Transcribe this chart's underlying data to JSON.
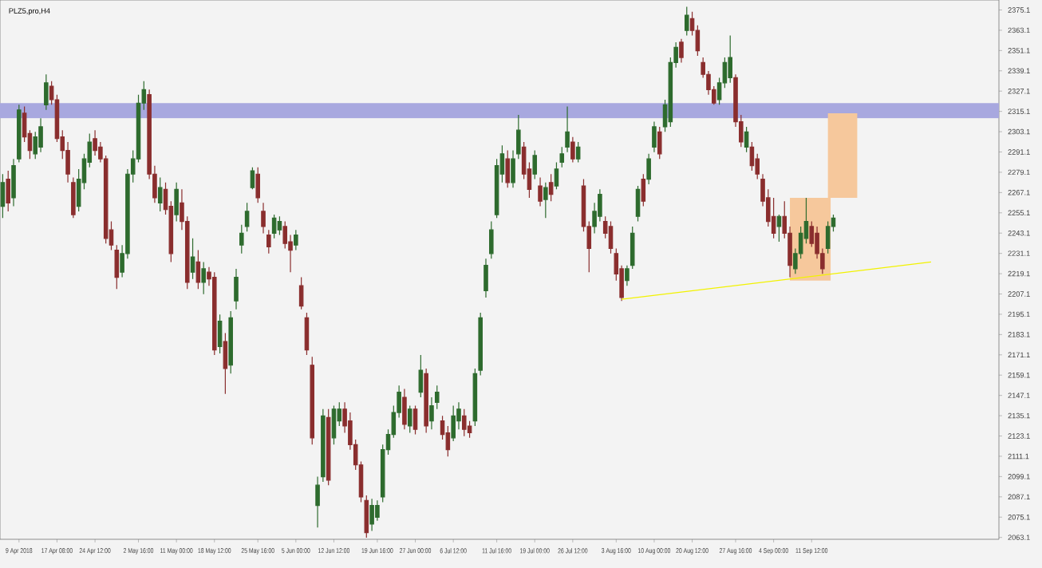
{
  "chart_data": {
    "type": "candlestick",
    "title": "PLZ5,pro,H4",
    "categories": [
      null,
      null,
      null,
      "9 Apr 2018",
      null,
      null,
      null,
      null,
      null,
      null,
      "17 Apr 08:00",
      null,
      null,
      null,
      null,
      null,
      null,
      "24 Apr 12:00",
      null,
      null,
      null,
      null,
      null,
      null,
      null,
      "2 May 16:00",
      null,
      null,
      null,
      null,
      null,
      null,
      "11 May 00:00",
      null,
      null,
      null,
      null,
      null,
      null,
      "18 May 12:00",
      null,
      null,
      null,
      null,
      null,
      null,
      null,
      "25 May 16:00",
      null,
      null,
      null,
      null,
      null,
      null,
      "5 Jun 00:00",
      null,
      null,
      null,
      null,
      null,
      null,
      "12 Jun 12:00",
      null,
      null,
      null,
      null,
      null,
      null,
      null,
      "19 Jun 16:00",
      null,
      null,
      null,
      null,
      null,
      null,
      "27 Jun 00:00",
      null,
      null,
      null,
      null,
      null,
      null,
      "6 Jul 12:00",
      null,
      null,
      null,
      null,
      null,
      null,
      null,
      "11 Jul 16:00",
      null,
      null,
      null,
      null,
      null,
      null,
      "19 Jul 00:00",
      null,
      null,
      null,
      null,
      null,
      null,
      "26 Jul 12:00",
      null,
      null,
      null,
      null,
      null,
      null,
      null,
      "3 Aug 16:00",
      null,
      null,
      null,
      null,
      null,
      null,
      "10 Aug 00:00",
      null,
      null,
      null,
      null,
      null,
      null,
      "20 Aug 12:00",
      null,
      null,
      null,
      null,
      null,
      null,
      null,
      "27 Aug 16:00",
      null,
      null,
      null,
      null,
      null,
      null,
      "4 Sep 00:00",
      null,
      null,
      null,
      null,
      null,
      null,
      "11 Sep 12:00",
      null,
      null,
      null,
      null,
      null,
      null,
      null,
      null,
      null,
      null,
      null,
      null,
      null,
      null,
      null,
      null,
      null,
      null,
      null,
      null,
      null,
      null,
      null,
      null,
      null,
      null,
      null,
      null,
      null,
      null,
      null,
      null,
      null,
      null
    ],
    "ohlc": [
      [
        2259,
        2278,
        2252,
        2273
      ],
      [
        2275,
        2280,
        2256,
        2261
      ],
      [
        2264,
        2287,
        2259,
        2283
      ],
      [
        2287,
        2319,
        2285,
        2316
      ],
      [
        2314,
        2318,
        2297,
        2300
      ],
      [
        2302,
        2304,
        2287,
        2292
      ],
      [
        2290,
        2303,
        2287,
        2300
      ],
      [
        2294,
        2311,
        2291,
        2306
      ],
      [
        2319,
        2337,
        2316,
        2332
      ],
      [
        2330,
        2333,
        2319,
        2322
      ],
      [
        2322,
        2325,
        2297,
        2299
      ],
      [
        2300,
        2304,
        2287,
        2292
      ],
      [
        2292,
        2297,
        2273,
        2278
      ],
      [
        2273,
        2276,
        2252,
        2254
      ],
      [
        2259,
        2281,
        2256,
        2275
      ],
      [
        2273,
        2290,
        2269,
        2287
      ],
      [
        2285,
        2302,
        2282,
        2297
      ],
      [
        2299,
        2304,
        2289,
        2292
      ],
      [
        2294,
        2297,
        2285,
        2287
      ],
      [
        2287,
        2289,
        2237,
        2240
      ],
      [
        2245,
        2250,
        2233,
        2236
      ],
      [
        2233,
        2236,
        2210,
        2217
      ],
      [
        2220,
        2236,
        2217,
        2231
      ],
      [
        2231,
        2281,
        2228,
        2278
      ],
      [
        2278,
        2292,
        2273,
        2287
      ],
      [
        2287,
        2325,
        2285,
        2320
      ],
      [
        2320,
        2333,
        2316,
        2328
      ],
      [
        2325,
        2328,
        2275,
        2278
      ],
      [
        2278,
        2283,
        2261,
        2264
      ],
      [
        2261,
        2276,
        2256,
        2270
      ],
      [
        2269,
        2273,
        2254,
        2257
      ],
      [
        2259,
        2262,
        2226,
        2231
      ],
      [
        2254,
        2273,
        2250,
        2269
      ],
      [
        2261,
        2269,
        2245,
        2250
      ],
      [
        2250,
        2253,
        2210,
        2214
      ],
      [
        2220,
        2240,
        2216,
        2229
      ],
      [
        2226,
        2233,
        2210,
        2214
      ],
      [
        2214,
        2226,
        2207,
        2222
      ],
      [
        2220,
        2223,
        2212,
        2216
      ],
      [
        2217,
        2220,
        2171,
        2174
      ],
      [
        2176,
        2195,
        2172,
        2191
      ],
      [
        2179,
        2184,
        2148,
        2163
      ],
      [
        2165,
        2197,
        2160,
        2193
      ],
      [
        2203,
        2222,
        2198,
        2217
      ],
      [
        2236,
        2248,
        2231,
        2243
      ],
      [
        2247,
        2261,
        2244,
        2256
      ],
      [
        2270,
        2282,
        2269,
        2280
      ],
      [
        2278,
        2282,
        2261,
        2264
      ],
      [
        2256,
        2261,
        2243,
        2247
      ],
      [
        2242,
        2245,
        2231,
        2235
      ],
      [
        2243,
        2254,
        2240,
        2252
      ],
      [
        2245,
        2253,
        2242,
        2250
      ],
      [
        2247,
        2250,
        2234,
        2237
      ],
      [
        2238,
        2242,
        2220,
        2233
      ],
      [
        2236,
        2245,
        2233,
        2242
      ],
      [
        2212,
        2217,
        2198,
        2200
      ],
      [
        2193,
        2196,
        2171,
        2174
      ],
      [
        2165,
        2170,
        2118,
        2122
      ],
      [
        2082,
        2099,
        2069,
        2094
      ],
      [
        2099,
        2139,
        2096,
        2135
      ],
      [
        2134,
        2139,
        2094,
        2097
      ],
      [
        2122,
        2141,
        2118,
        2139
      ],
      [
        2132,
        2143,
        2129,
        2139
      ],
      [
        2139,
        2143,
        2125,
        2129
      ],
      [
        2132,
        2137,
        2115,
        2118
      ],
      [
        2118,
        2121,
        2103,
        2106
      ],
      [
        2106,
        2108,
        2084,
        2087
      ],
      [
        2085,
        2088,
        2063,
        2066
      ],
      [
        2071,
        2086,
        2067,
        2082
      ],
      [
        2075,
        2085,
        2073,
        2082
      ],
      [
        2087,
        2118,
        2084,
        2115
      ],
      [
        2115,
        2127,
        2112,
        2124
      ],
      [
        2124,
        2141,
        2122,
        2137
      ],
      [
        2137,
        2153,
        2134,
        2149
      ],
      [
        2146,
        2151,
        2127,
        2130
      ],
      [
        2129,
        2141,
        2125,
        2139
      ],
      [
        2139,
        2141,
        2124,
        2127
      ],
      [
        2149,
        2171,
        2146,
        2162
      ],
      [
        2160,
        2163,
        2125,
        2129
      ],
      [
        2132,
        2146,
        2127,
        2141
      ],
      [
        2143,
        2153,
        2139,
        2149
      ],
      [
        2132,
        2135,
        2121,
        2124
      ],
      [
        2125,
        2129,
        2111,
        2115
      ],
      [
        2122,
        2141,
        2120,
        2135
      ],
      [
        2132,
        2143,
        2127,
        2139
      ],
      [
        2135,
        2139,
        2123,
        2127
      ],
      [
        2129,
        2132,
        2122,
        2125
      ],
      [
        2132,
        2163,
        2129,
        2160
      ],
      [
        2162,
        2196,
        2159,
        2193
      ],
      [
        2209,
        2228,
        2205,
        2224
      ],
      [
        2231,
        2250,
        2228,
        2245
      ],
      [
        2254,
        2287,
        2252,
        2283
      ],
      [
        2278,
        2295,
        2273,
        2290
      ],
      [
        2287,
        2292,
        2270,
        2273
      ],
      [
        2273,
        2292,
        2270,
        2287
      ],
      [
        2290,
        2313,
        2287,
        2304
      ],
      [
        2294,
        2297,
        2275,
        2278
      ],
      [
        2281,
        2285,
        2264,
        2269
      ],
      [
        2278,
        2292,
        2275,
        2289
      ],
      [
        2271,
        2276,
        2259,
        2262
      ],
      [
        2263,
        2273,
        2252,
        2270
      ],
      [
        2273,
        2278,
        2262,
        2266
      ],
      [
        2271,
        2285,
        2269,
        2281
      ],
      [
        2285,
        2294,
        2282,
        2290
      ],
      [
        2294,
        2318,
        2291,
        2303
      ],
      [
        2297,
        2300,
        2285,
        2287
      ],
      [
        2287,
        2297,
        2285,
        2294
      ],
      [
        2271,
        2275,
        2244,
        2247
      ],
      [
        2247,
        2250,
        2220,
        2234
      ],
      [
        2247,
        2261,
        2243,
        2256
      ],
      [
        2253,
        2269,
        2250,
        2266
      ],
      [
        2250,
        2253,
        2240,
        2243
      ],
      [
        2247,
        2250,
        2231,
        2234
      ],
      [
        2231,
        2234,
        2215,
        2219
      ],
      [
        2222,
        2224,
        2203,
        2205
      ],
      [
        2215,
        2224,
        2212,
        2222
      ],
      [
        2224,
        2247,
        2222,
        2243
      ],
      [
        2253,
        2271,
        2250,
        2269
      ],
      [
        2275,
        2278,
        2259,
        2262
      ],
      [
        2275,
        2290,
        2272,
        2287
      ],
      [
        2294,
        2309,
        2291,
        2306
      ],
      [
        2303,
        2306,
        2287,
        2290
      ],
      [
        2306,
        2322,
        2303,
        2319
      ],
      [
        2309,
        2347,
        2306,
        2344
      ],
      [
        2344,
        2356,
        2341,
        2353
      ],
      [
        2356,
        2358,
        2344,
        2347
      ],
      [
        2363,
        2377,
        2360,
        2372
      ],
      [
        2370,
        2374,
        2360,
        2363
      ],
      [
        2363,
        2366,
        2348,
        2351
      ],
      [
        2344,
        2347,
        2335,
        2337
      ],
      [
        2337,
        2339,
        2325,
        2328
      ],
      [
        2328,
        2330,
        2319,
        2320
      ],
      [
        2322,
        2335,
        2319,
        2332
      ],
      [
        2332,
        2347,
        2329,
        2344
      ],
      [
        2335,
        2360,
        2332,
        2347
      ],
      [
        2335,
        2337,
        2306,
        2309
      ],
      [
        2309,
        2313,
        2294,
        2297
      ],
      [
        2294,
        2306,
        2291,
        2303
      ],
      [
        2294,
        2297,
        2280,
        2283
      ],
      [
        2287,
        2290,
        2275,
        2278
      ],
      [
        2275,
        2278,
        2259,
        2262
      ],
      [
        2264,
        2269,
        2247,
        2250
      ],
      [
        2253,
        2264,
        2240,
        2243
      ],
      [
        2247,
        2254,
        2238,
        2253
      ],
      [
        2253,
        2262,
        2240,
        2243
      ],
      [
        2243,
        2247,
        2217,
        2224
      ],
      [
        2222,
        2234,
        2219,
        2231
      ],
      [
        2231,
        2247,
        2228,
        2243
      ],
      [
        2240,
        2264,
        2237,
        2250
      ],
      [
        2247,
        2250,
        2235,
        2237
      ],
      [
        2243,
        2247,
        2228,
        2231
      ],
      [
        2231,
        2234,
        2219,
        2222
      ],
      [
        2234,
        2250,
        2231,
        2247
      ],
      [
        2247,
        2254,
        2244,
        2252
      ],
      null,
      null,
      null,
      null,
      null,
      null,
      null,
      null,
      null,
      null,
      null,
      null,
      null,
      null,
      null,
      null,
      null,
      null,
      null,
      null,
      null,
      null,
      null,
      null,
      null,
      null,
      null,
      null,
      null,
      null
    ],
    "series": [
      {
        "type": "line",
        "color": "#f2f200",
        "values": [
          null,
          null,
          null,
          null,
          null,
          null,
          null,
          null,
          null,
          null,
          null,
          null,
          null,
          null,
          null,
          null,
          null,
          null,
          null,
          null,
          null,
          null,
          null,
          null,
          null,
          null,
          null,
          null,
          null,
          null,
          null,
          null,
          null,
          null,
          null,
          null,
          null,
          null,
          null,
          null,
          null,
          null,
          null,
          null,
          null,
          null,
          null,
          null,
          null,
          null,
          null,
          null,
          null,
          null,
          null,
          null,
          null,
          null,
          null,
          null,
          null,
          null,
          null,
          null,
          null,
          null,
          null,
          null,
          null,
          null,
          null,
          null,
          null,
          null,
          null,
          null,
          null,
          null,
          null,
          null,
          null,
          null,
          null,
          null,
          null,
          null,
          null,
          null,
          null,
          null,
          null,
          null,
          null,
          null,
          null,
          null,
          null,
          null,
          null,
          null,
          null,
          null,
          null,
          null,
          null,
          null,
          null,
          null,
          null,
          null,
          null,
          null,
          null,
          null,
          2204,
          null,
          null,
          null,
          null,
          null,
          null,
          null,
          null,
          null,
          null,
          null,
          null,
          null,
          null,
          null,
          null,
          null,
          null,
          null,
          null,
          null,
          null,
          null,
          null,
          null,
          null,
          null,
          null,
          null,
          null,
          null,
          null,
          null,
          null,
          null,
          null,
          null,
          null,
          null,
          null,
          null,
          null,
          null,
          null,
          null,
          null,
          null,
          null,
          null,
          null,
          null,
          null,
          null,
          null,
          null,
          null,
          2226,
          null,
          null,
          null,
          null,
          null,
          null,
          null,
          null,
          null,
          null,
          null,
          null
        ]
      }
    ],
    "bands": [
      {
        "axis": "y",
        "from": 2311,
        "to": 2320,
        "color": "#a8a8df"
      }
    ],
    "ylim": [
      2062,
      2381
    ],
    "yticks": [
      2063.1,
      2075.1,
      2087.1,
      2099.1,
      2111.1,
      2123.1,
      2135.1,
      2147.1,
      2159.1,
      2171.1,
      2183.1,
      2195.1,
      2207.1,
      2219.1,
      2231.1,
      2243.1,
      2255.1,
      2267.1,
      2279.1,
      2291.1,
      2303.1,
      2315.1,
      2327.1,
      2339.1,
      2351.1,
      2363.1,
      2375.1
    ],
    "tick_labels": true
  }
}
